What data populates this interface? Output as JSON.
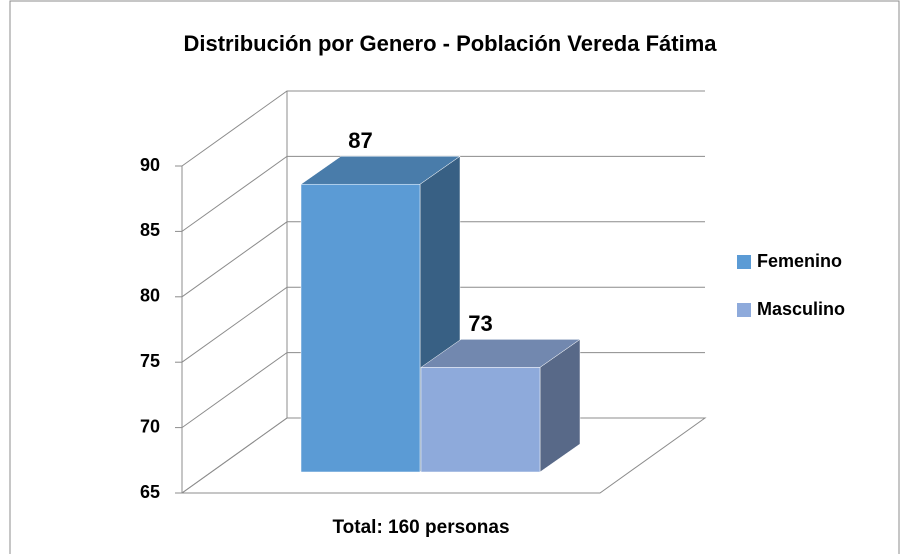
{
  "chart_data": {
    "type": "bar3d",
    "title": "Distribución por Genero - Población Vereda Fátima",
    "categories": [
      "Total: 160 personas"
    ],
    "series": [
      {
        "name": "Femenino",
        "color": "#5b9bd5",
        "values": [
          87
        ]
      },
      {
        "name": "Masculino",
        "color": "#8eaadb",
        "values": [
          73
        ]
      }
    ],
    "ylim": [
      65,
      90
    ],
    "yticks": [
      65,
      70,
      75,
      80,
      85,
      90
    ],
    "grid": true,
    "legend": "right"
  }
}
